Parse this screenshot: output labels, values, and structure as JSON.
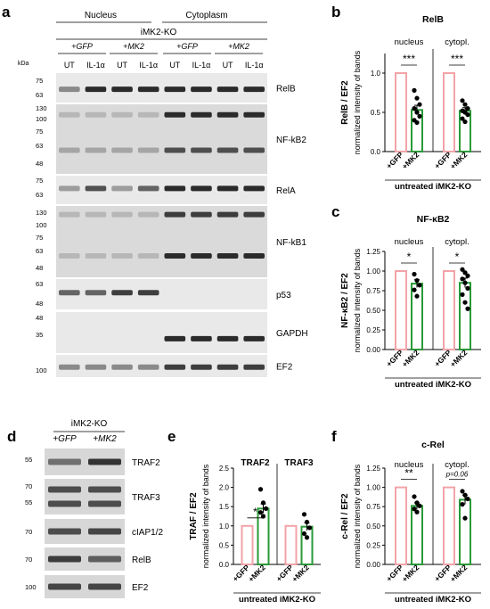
{
  "panel_letters": {
    "a": "a",
    "b": "b",
    "c": "c",
    "d": "d",
    "e": "e",
    "f": "f"
  },
  "panel_a": {
    "nucleus": "Nucleus",
    "cytoplasm": "Cytoplasm",
    "genotype": "iMK2-KO",
    "groups": [
      "+GFP",
      "+MK2",
      "+GFP",
      "+MK2"
    ],
    "lanes": [
      "UT",
      "IL-1α",
      "UT",
      "IL-1α",
      "UT",
      "IL-1α",
      "UT",
      "IL-1α"
    ],
    "kda": "kDa",
    "blots": [
      {
        "label": "RelB",
        "markers": [
          "75",
          "63"
        ]
      },
      {
        "label": "NF-kB2",
        "markers": [
          "130",
          "100",
          "75",
          "63",
          "48"
        ]
      },
      {
        "label": "RelA",
        "markers": [
          "75",
          "63"
        ]
      },
      {
        "label": "NF-kB1",
        "markers": [
          "130",
          "100",
          "75",
          "63",
          "48"
        ]
      },
      {
        "label": "p53",
        "markers": [
          "63",
          "48"
        ]
      },
      {
        "label": "GAPDH",
        "markers": [
          "48",
          "35"
        ]
      },
      {
        "label": "EF2",
        "markers": [
          "100"
        ]
      }
    ]
  },
  "panel_d": {
    "genotype": "iMK2-KO",
    "groups": [
      "+GFP",
      "+MK2"
    ],
    "blots": [
      {
        "label": "TRAF2",
        "markers": [
          "55"
        ]
      },
      {
        "label": "TRAF3",
        "markers": [
          "70",
          "55"
        ]
      },
      {
        "label": "cIAP1/2",
        "markers": [
          "70"
        ]
      },
      {
        "label": "RelB",
        "markers": [
          "70"
        ]
      },
      {
        "label": "EF2",
        "markers": [
          "100"
        ]
      }
    ]
  },
  "chart_data": [
    {
      "panel": "b",
      "type": "bar",
      "title": "RelB",
      "ylabel_outer": "RelB / EF2",
      "ylabel_inner": "normalized intensity of bands",
      "ylim": [
        0,
        1.25
      ],
      "yticks": [
        "0.0",
        "0.5",
        "1.0"
      ],
      "groups": [
        {
          "name": "nucleus",
          "significance": "***",
          "categories": [
            "+GFP",
            "+MK2"
          ],
          "values": [
            1.0,
            0.53
          ],
          "sem": [
            0,
            0.06
          ],
          "points": [
            [],
            [
              0.78,
              0.68,
              0.6,
              0.55,
              0.5,
              0.45,
              0.4,
              0.37
            ]
          ]
        },
        {
          "name": "cytopl.",
          "significance": "***",
          "categories": [
            "+GFP",
            "+MK2"
          ],
          "values": [
            1.0,
            0.52
          ],
          "sem": [
            0,
            0.04
          ],
          "points": [
            [],
            [
              0.65,
              0.6,
              0.55,
              0.52,
              0.5,
              0.47,
              0.42,
              0.38
            ]
          ]
        }
      ],
      "xlabel": "untreated iMK2-KO"
    },
    {
      "panel": "c",
      "type": "bar",
      "title": "NF-κB2",
      "ylabel_outer": "NF-κB2 / EF2",
      "ylabel_inner": "normalized intensity of bands",
      "ylim": [
        0,
        1.25
      ],
      "yticks": [
        "0.00",
        "0.25",
        "0.50",
        "0.75",
        "1.00",
        "1.25"
      ],
      "groups": [
        {
          "name": "nucleus",
          "significance": "*",
          "categories": [
            "+GFP",
            "+MK2"
          ],
          "values": [
            1.0,
            0.84
          ],
          "sem": [
            0,
            0.05
          ],
          "points": [
            [],
            [
              0.96,
              0.88,
              0.82,
              0.76,
              0.68
            ]
          ]
        },
        {
          "name": "cytopl.",
          "significance": "*",
          "categories": [
            "+GFP",
            "+MK2"
          ],
          "values": [
            1.0,
            0.85
          ],
          "sem": [
            0,
            0.06
          ],
          "points": [
            [],
            [
              1.02,
              0.98,
              0.94,
              0.9,
              0.85,
              0.78,
              0.7,
              0.6,
              0.52
            ]
          ]
        }
      ],
      "xlabel": "untreated iMK2-KO"
    },
    {
      "panel": "e",
      "type": "bar",
      "title": "",
      "ylabel_outer": "TRAF / EF2",
      "ylabel_inner": "normalized intensity of bands",
      "ylim": [
        0,
        2.5
      ],
      "yticks": [
        "0.0",
        "0.5",
        "1.0",
        "1.5",
        "2.0",
        "2.5"
      ],
      "groups": [
        {
          "name": "TRAF2",
          "significance": "*",
          "categories": [
            "+GFP",
            "+MK2"
          ],
          "values": [
            1.0,
            1.45
          ],
          "sem": [
            0,
            0.12
          ],
          "points": [
            [],
            [
              1.95,
              1.6,
              1.45,
              1.35,
              1.25
            ]
          ]
        },
        {
          "name": "TRAF3",
          "significance": "",
          "categories": [
            "+GFP",
            "+MK2"
          ],
          "values": [
            1.0,
            0.98
          ],
          "sem": [
            0,
            0.1
          ],
          "points": [
            [],
            [
              1.3,
              1.1,
              0.95,
              0.8,
              0.7
            ]
          ]
        }
      ],
      "xlabel": "untreated iMK2-KO"
    },
    {
      "panel": "f",
      "type": "bar",
      "title": "c-Rel",
      "ylabel_outer": "c-Rel / EF2",
      "ylabel_inner": "normalized intensity of bands",
      "ylim": [
        0,
        1.25
      ],
      "yticks": [
        "0.00",
        "0.25",
        "0.50",
        "0.75",
        "1.00",
        "1.25"
      ],
      "groups": [
        {
          "name": "nucleus",
          "significance": "**",
          "categories": [
            "+GFP",
            "+MK2"
          ],
          "values": [
            1.0,
            0.76
          ],
          "sem": [
            0,
            0.04
          ],
          "points": [
            [],
            [
              0.88,
              0.8,
              0.76,
              0.72,
              0.68
            ]
          ]
        },
        {
          "name": "cytopl.",
          "significance": "p=0.06",
          "categories": [
            "+GFP",
            "+MK2"
          ],
          "values": [
            1.0,
            0.84
          ],
          "sem": [
            0,
            0.06
          ],
          "points": [
            [],
            [
              0.95,
              0.9,
              0.85,
              0.78,
              0.6
            ]
          ]
        }
      ],
      "xlabel": "untreated iMK2-KO"
    }
  ],
  "colors": {
    "gfp": "#f3a3a8",
    "mk2": "#2a9a38",
    "blot_light": "#e9e9e9",
    "band": "#2b2b2b"
  }
}
